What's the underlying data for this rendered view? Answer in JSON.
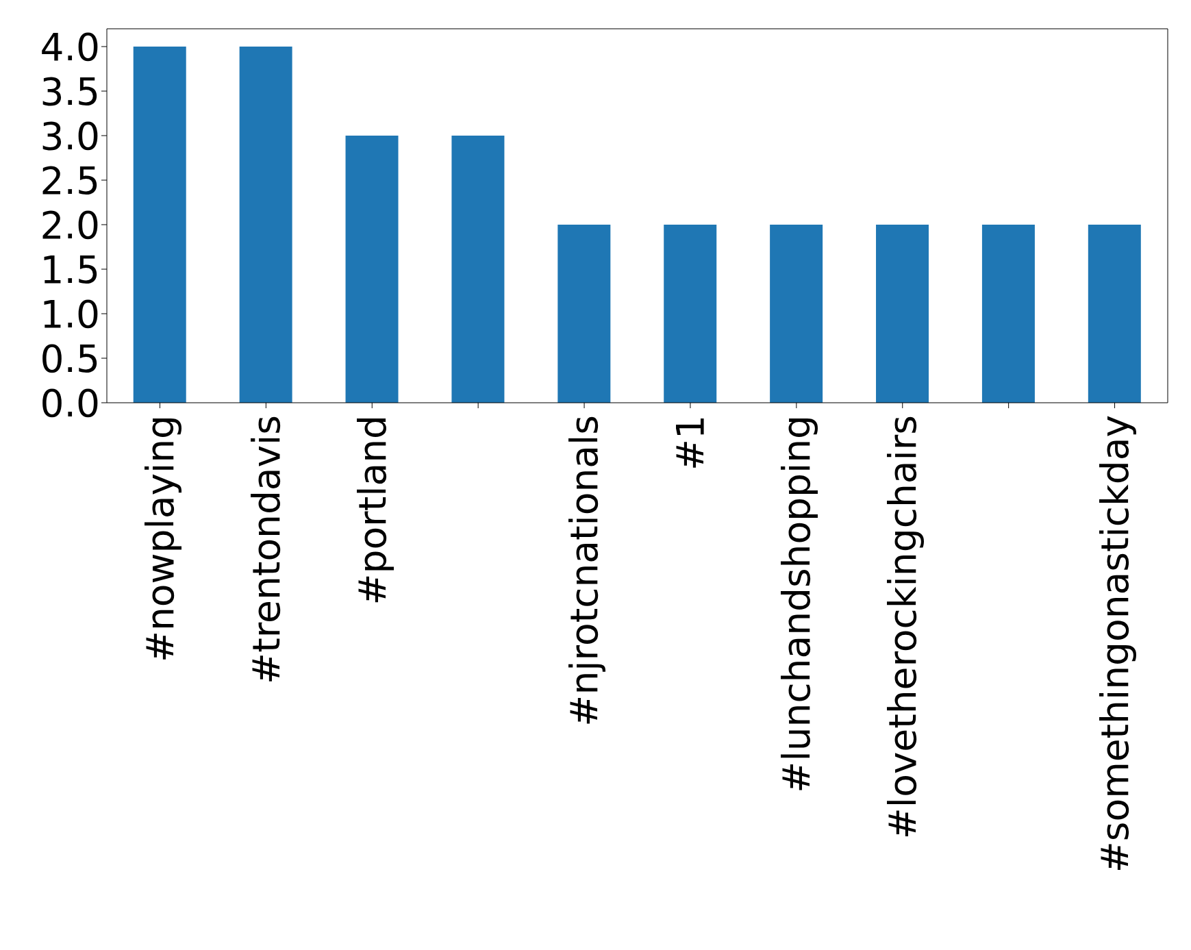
{
  "chart_data": {
    "type": "bar",
    "categories": [
      "#nowplaying",
      "#trentondavis",
      "#portland",
      null,
      "#njrotcnationals",
      "#1",
      "#lunchandshopping",
      "#lovetherockingchairs",
      null,
      "#somethingonastickday"
    ],
    "values": [
      4,
      4,
      3,
      3,
      2,
      2,
      2,
      2,
      2,
      2
    ],
    "color": "#1f77b4",
    "ylim": [
      0,
      4.2
    ],
    "yticks": [
      {
        "value": 0,
        "label": "0.0"
      },
      0.5,
      {
        "value": 1,
        "label": "1.0"
      },
      1.5,
      {
        "value": 2,
        "label": "2.0"
      },
      2.5,
      {
        "value": 3,
        "label": "3.0"
      },
      3.5,
      {
        "value": 4,
        "label": "4.0"
      }
    ],
    "grid": false,
    "legend": false
  }
}
